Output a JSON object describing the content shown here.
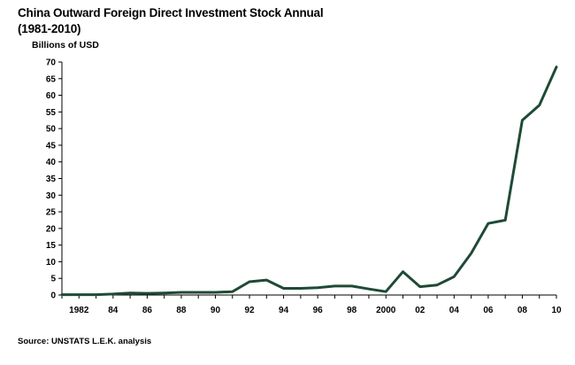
{
  "title_line1": "China Outward Foreign Direct Investment Stock Annual",
  "title_line2": "(1981-2010)",
  "source": "Source: UNSTATS L.E.K. analysis",
  "colors": {
    "line": "#1f4a36",
    "axis": "#000000"
  },
  "chart_data": {
    "type": "line",
    "title": "China Outward Foreign Direct Investment Stock Annual (1981-2010)",
    "ylabel": "Billions of USD",
    "xlabel": "",
    "ylim": [
      0,
      70
    ],
    "yticks": [
      0,
      5,
      10,
      15,
      20,
      25,
      30,
      35,
      40,
      45,
      50,
      55,
      60,
      65,
      70
    ],
    "xlim": [
      1981,
      2010
    ],
    "xticks": [
      {
        "x": 1982,
        "label": "1982"
      },
      {
        "x": 1984,
        "label": "84"
      },
      {
        "x": 1986,
        "label": "86"
      },
      {
        "x": 1988,
        "label": "88"
      },
      {
        "x": 1990,
        "label": "90"
      },
      {
        "x": 1992,
        "label": "92"
      },
      {
        "x": 1994,
        "label": "94"
      },
      {
        "x": 1996,
        "label": "96"
      },
      {
        "x": 1998,
        "label": "98"
      },
      {
        "x": 2000,
        "label": "2000"
      },
      {
        "x": 2002,
        "label": "02"
      },
      {
        "x": 2004,
        "label": "04"
      },
      {
        "x": 2006,
        "label": "06"
      },
      {
        "x": 2008,
        "label": "08"
      },
      {
        "x": 2010,
        "label": "10"
      }
    ],
    "grid": false,
    "series": [
      {
        "name": "",
        "x": [
          1981,
          1982,
          1983,
          1984,
          1985,
          1986,
          1987,
          1988,
          1989,
          1990,
          1991,
          1992,
          1993,
          1994,
          1995,
          1996,
          1997,
          1998,
          1999,
          2000,
          2001,
          2002,
          2003,
          2004,
          2005,
          2006,
          2007,
          2008,
          2009,
          2010
        ],
        "y": [
          0.1,
          0.1,
          0.1,
          0.3,
          0.6,
          0.5,
          0.6,
          0.8,
          0.8,
          0.8,
          1.0,
          4.0,
          4.5,
          2.0,
          2.0,
          2.2,
          2.7,
          2.7,
          1.8,
          1.0,
          7.0,
          2.5,
          3.0,
          5.5,
          12.5,
          21.5,
          22.5,
          52.5,
          57.0,
          68.5
        ]
      }
    ]
  }
}
